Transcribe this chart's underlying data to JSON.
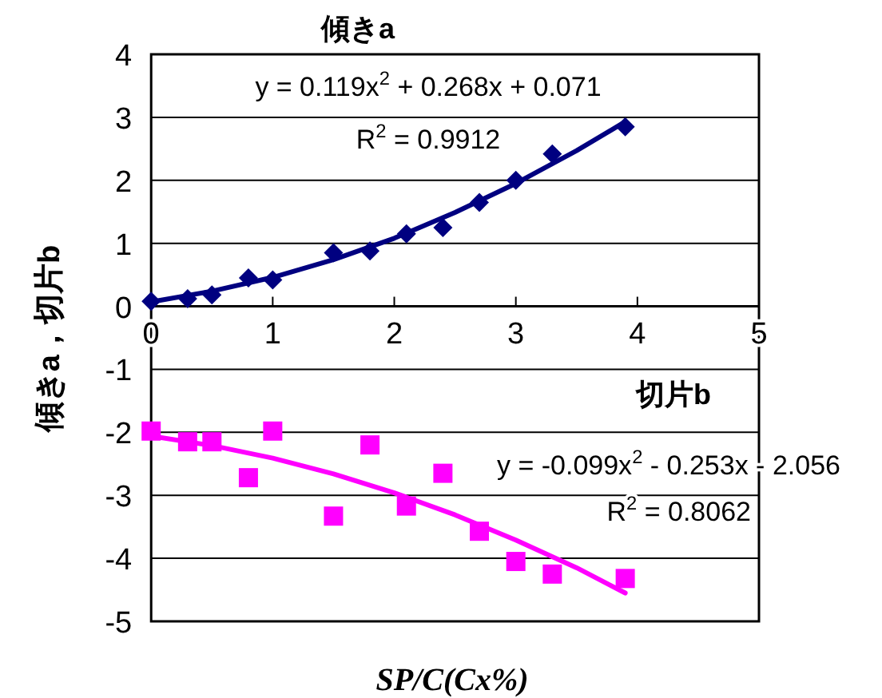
{
  "chart_data": {
    "type": "scatter",
    "title": "傾きa",
    "xlabel": "SP/C(Cx%)",
    "ylabel": "傾きa，切片b",
    "xlim": [
      0,
      5
    ],
    "xticks": [
      0,
      1,
      2,
      3,
      4,
      5
    ],
    "ylim": [
      -5,
      4
    ],
    "yticks": [
      -5,
      -4,
      -3,
      -2,
      -1,
      0,
      1,
      2,
      3,
      4
    ],
    "grid": "y",
    "annotations": [
      "y = 0.119x$^{2}$ + 0.268x + 0.071",
      "R$^{2}$ = 0.9912",
      "切片b",
      "y = -0.099x$^{2}$ - 0.253x - 2.056",
      "R$^{2}$ = 0.8062"
    ],
    "series": [
      {
        "type": "scatter",
        "marker": "diamond",
        "color": "#000080",
        "x": [
          0,
          0.3,
          0.5,
          0.8,
          1.0,
          1.5,
          1.8,
          2.1,
          2.4,
          2.7,
          3.0,
          3.3,
          3.9
        ],
        "values": [
          0.08,
          0.12,
          0.18,
          0.45,
          0.42,
          0.85,
          0.88,
          1.15,
          1.25,
          1.65,
          2.0,
          2.42,
          2.85
        ]
      },
      {
        "type": "line",
        "marker": "none",
        "color": "#000080",
        "x": [
          0,
          0.5,
          1,
          1.5,
          2,
          2.5,
          3,
          3.5,
          3.9
        ],
        "values": [
          0.07,
          0.24,
          0.46,
          0.74,
          1.08,
          1.49,
          1.95,
          2.47,
          2.93
        ]
      },
      {
        "type": "scatter",
        "marker": "square",
        "color": "#ff00ff",
        "x": [
          0,
          0.3,
          0.5,
          0.8,
          1.0,
          1.5,
          1.8,
          2.1,
          2.4,
          2.7,
          3.0,
          3.3,
          3.9
        ],
        "values": [
          -1.98,
          -2.15,
          -2.15,
          -2.72,
          -1.98,
          -3.33,
          -2.2,
          -3.17,
          -2.65,
          -3.57,
          -4.05,
          -4.25,
          -4.32
        ]
      },
      {
        "type": "line",
        "marker": "none",
        "color": "#ff00ff",
        "x": [
          0,
          0.5,
          1,
          1.5,
          2,
          2.5,
          3,
          3.5,
          3.9
        ],
        "values": [
          -2.06,
          -2.21,
          -2.41,
          -2.66,
          -2.96,
          -3.31,
          -3.71,
          -4.15,
          -4.55
        ]
      }
    ]
  }
}
